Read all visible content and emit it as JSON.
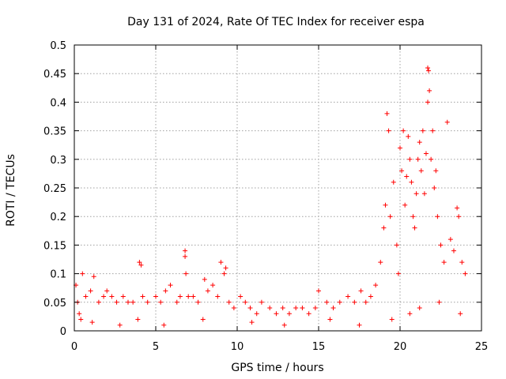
{
  "chart_data": {
    "type": "scatter",
    "title": "Day 131 of 2024, Rate Of TEC Index for receiver espa",
    "xlabel": "GPS time / hours",
    "ylabel": "ROTI / TECUs",
    "xlim": [
      0,
      25
    ],
    "ylim": [
      0,
      0.5
    ],
    "xticks": [
      0,
      5,
      10,
      15,
      20,
      25
    ],
    "xtick_labels": [
      "0",
      "5",
      "10",
      "15",
      "20",
      "25"
    ],
    "yticks": [
      0,
      0.05,
      0.1,
      0.15,
      0.2,
      0.25,
      0.3,
      0.35,
      0.4,
      0.45,
      0.5
    ],
    "ytick_labels": [
      "0",
      "0.05",
      "0.1",
      "0.15",
      "0.2",
      "0.25",
      "0.3",
      "0.35",
      "0.4",
      "0.45",
      "0.5"
    ],
    "grid": true,
    "marker": "+",
    "marker_color": "#ff0000",
    "series": [
      {
        "name": "ROTI",
        "x": [
          0.1,
          0.2,
          0.3,
          0.5,
          0.7,
          1.0,
          1.2,
          1.5,
          1.8,
          2.0,
          2.3,
          2.6,
          3.0,
          3.3,
          3.6,
          4.0,
          4.1,
          4.2,
          4.5,
          5.0,
          5.3,
          5.6,
          5.9,
          6.3,
          6.5,
          6.8,
          6.8,
          6.85,
          7.0,
          7.3,
          7.6,
          8.0,
          8.2,
          8.5,
          8.8,
          9.0,
          9.2,
          9.3,
          9.5,
          9.8,
          10.2,
          10.5,
          10.8,
          11.2,
          11.5,
          12.0,
          12.4,
          12.8,
          13.2,
          13.6,
          14.0,
          14.4,
          14.8,
          15.0,
          15.5,
          15.9,
          16.3,
          16.8,
          17.2,
          17.6,
          17.9,
          18.2,
          18.5,
          18.8,
          19.0,
          19.1,
          19.2,
          19.3,
          19.4,
          19.6,
          19.8,
          19.9,
          20.0,
          20.1,
          20.2,
          20.3,
          20.4,
          20.5,
          20.6,
          20.7,
          20.8,
          20.9,
          21.0,
          21.1,
          21.2,
          21.3,
          21.4,
          21.5,
          21.6,
          21.7,
          21.7,
          21.75,
          21.8,
          21.9,
          22.0,
          22.1,
          22.2,
          22.3,
          22.5,
          22.7,
          22.9,
          23.1,
          23.3,
          23.5,
          23.6,
          23.8,
          24.0,
          0.4,
          1.1,
          2.8,
          3.9,
          5.5,
          7.9,
          10.9,
          12.9,
          15.7,
          17.5,
          19.5,
          20.6,
          21.2,
          22.4,
          23.7
        ],
        "y": [
          0.08,
          0.05,
          0.03,
          0.1,
          0.06,
          0.07,
          0.095,
          0.05,
          0.06,
          0.07,
          0.06,
          0.05,
          0.06,
          0.05,
          0.05,
          0.12,
          0.115,
          0.06,
          0.05,
          0.06,
          0.05,
          0.07,
          0.08,
          0.05,
          0.06,
          0.14,
          0.13,
          0.1,
          0.06,
          0.06,
          0.05,
          0.09,
          0.07,
          0.08,
          0.06,
          0.12,
          0.1,
          0.11,
          0.05,
          0.04,
          0.06,
          0.05,
          0.04,
          0.03,
          0.05,
          0.04,
          0.03,
          0.04,
          0.03,
          0.04,
          0.04,
          0.03,
          0.04,
          0.07,
          0.05,
          0.04,
          0.05,
          0.06,
          0.05,
          0.07,
          0.05,
          0.06,
          0.08,
          0.12,
          0.18,
          0.22,
          0.38,
          0.35,
          0.2,
          0.26,
          0.15,
          0.1,
          0.32,
          0.28,
          0.35,
          0.22,
          0.27,
          0.34,
          0.3,
          0.26,
          0.2,
          0.18,
          0.24,
          0.3,
          0.33,
          0.28,
          0.35,
          0.24,
          0.31,
          0.4,
          0.46,
          0.455,
          0.42,
          0.3,
          0.35,
          0.25,
          0.28,
          0.2,
          0.15,
          0.12,
          0.365,
          0.16,
          0.14,
          0.215,
          0.2,
          0.12,
          0.1,
          0.02,
          0.015,
          0.01,
          0.02,
          0.01,
          0.02,
          0.015,
          0.01,
          0.02,
          0.01,
          0.02,
          0.03,
          0.04,
          0.05,
          0.03
        ]
      }
    ]
  }
}
